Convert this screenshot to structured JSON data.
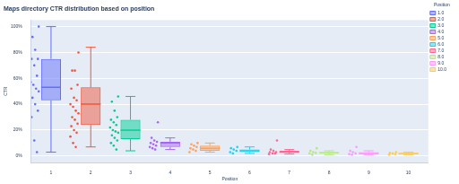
{
  "chart_data": {
    "type": "box",
    "title": "Maps directory CTR distribution based on position",
    "x_label": "Position",
    "y_label": "CTR",
    "legend_title": "Position",
    "legend": "right",
    "grid": true,
    "categories": [
      "1",
      "2",
      "3",
      "4",
      "5",
      "6",
      "7",
      "8",
      "9",
      "10"
    ],
    "ylim": [
      -5,
      105
    ],
    "yticks": [
      {
        "value": 0,
        "label": "0%"
      },
      {
        "value": 20,
        "label": "20%"
      },
      {
        "value": 40,
        "label": "40%"
      },
      {
        "value": 60,
        "label": "60%"
      },
      {
        "value": 80,
        "label": "80%"
      },
      {
        "value": 100,
        "label": "100%"
      }
    ],
    "series": [
      {
        "name": "1.0",
        "color": "#636efa",
        "box": {
          "min": 3,
          "q1": 43,
          "median": 53,
          "q3": 75,
          "max": 100
        },
        "points": [
          100,
          92,
          82,
          75,
          75,
          70,
          62,
          57,
          55,
          52,
          50,
          45,
          40,
          35,
          30,
          12,
          3
        ]
      },
      {
        "name": "2.0",
        "color": "#ef553b",
        "box": {
          "min": 7,
          "q1": 24,
          "median": 40,
          "q3": 53,
          "max": 84
        },
        "points": [
          80,
          66,
          66,
          55,
          52,
          45,
          43,
          40,
          38,
          35,
          33,
          30,
          28,
          25,
          23,
          20,
          18,
          15,
          10,
          7
        ]
      },
      {
        "name": "3.0",
        "color": "#00cc96",
        "box": {
          "min": 4,
          "q1": 13,
          "median": 20,
          "q3": 28,
          "max": 46
        },
        "points": [
          46,
          42,
          35,
          30,
          28,
          26,
          24,
          22,
          20,
          19,
          18,
          16,
          14,
          12,
          10,
          8,
          5
        ]
      },
      {
        "name": "4.0",
        "color": "#ab63fa",
        "box": {
          "min": 5,
          "q1": 7,
          "median": 10,
          "q3": 11,
          "max": 14
        },
        "points": [
          26,
          14,
          12,
          11,
          10,
          9,
          8,
          7,
          6,
          5
        ]
      },
      {
        "name": "5.0",
        "color": "#ffa15a",
        "box": {
          "min": 3,
          "q1": 4,
          "median": 6,
          "q3": 8,
          "max": 10
        },
        "points": [
          10,
          9,
          8,
          7,
          6,
          5,
          4,
          3
        ]
      },
      {
        "name": "6.0",
        "color": "#19d3f3",
        "box": {
          "min": 2,
          "q1": 3,
          "median": 4,
          "q3": 5,
          "max": 7
        },
        "points": [
          7,
          6,
          5,
          4,
          3,
          2
        ]
      },
      {
        "name": "7.0",
        "color": "#ff6692",
        "box": {
          "min": 1.5,
          "q1": 2.5,
          "median": 3,
          "q3": 4,
          "max": 5
        },
        "points": [
          12,
          5,
          4,
          3,
          3,
          2,
          2,
          1.5
        ]
      },
      {
        "name": "8.0",
        "color": "#b6e880",
        "box": {
          "min": 1,
          "q1": 2,
          "median": 2.5,
          "q3": 3,
          "max": 4
        },
        "points": [
          6,
          4,
          3,
          2.5,
          2,
          1
        ]
      },
      {
        "name": "9.0",
        "color": "#ff97ff",
        "box": {
          "min": 1,
          "q1": 1.5,
          "median": 2,
          "q3": 3,
          "max": 4
        },
        "points": [
          7,
          4,
          3,
          2,
          1.5,
          1
        ]
      },
      {
        "name": "10.0",
        "color": "#fecb52",
        "box": {
          "min": 1,
          "q1": 1.5,
          "median": 2,
          "q3": 2.5,
          "max": 3
        },
        "points": [
          3,
          2.5,
          2,
          1.5,
          1
        ]
      }
    ]
  }
}
